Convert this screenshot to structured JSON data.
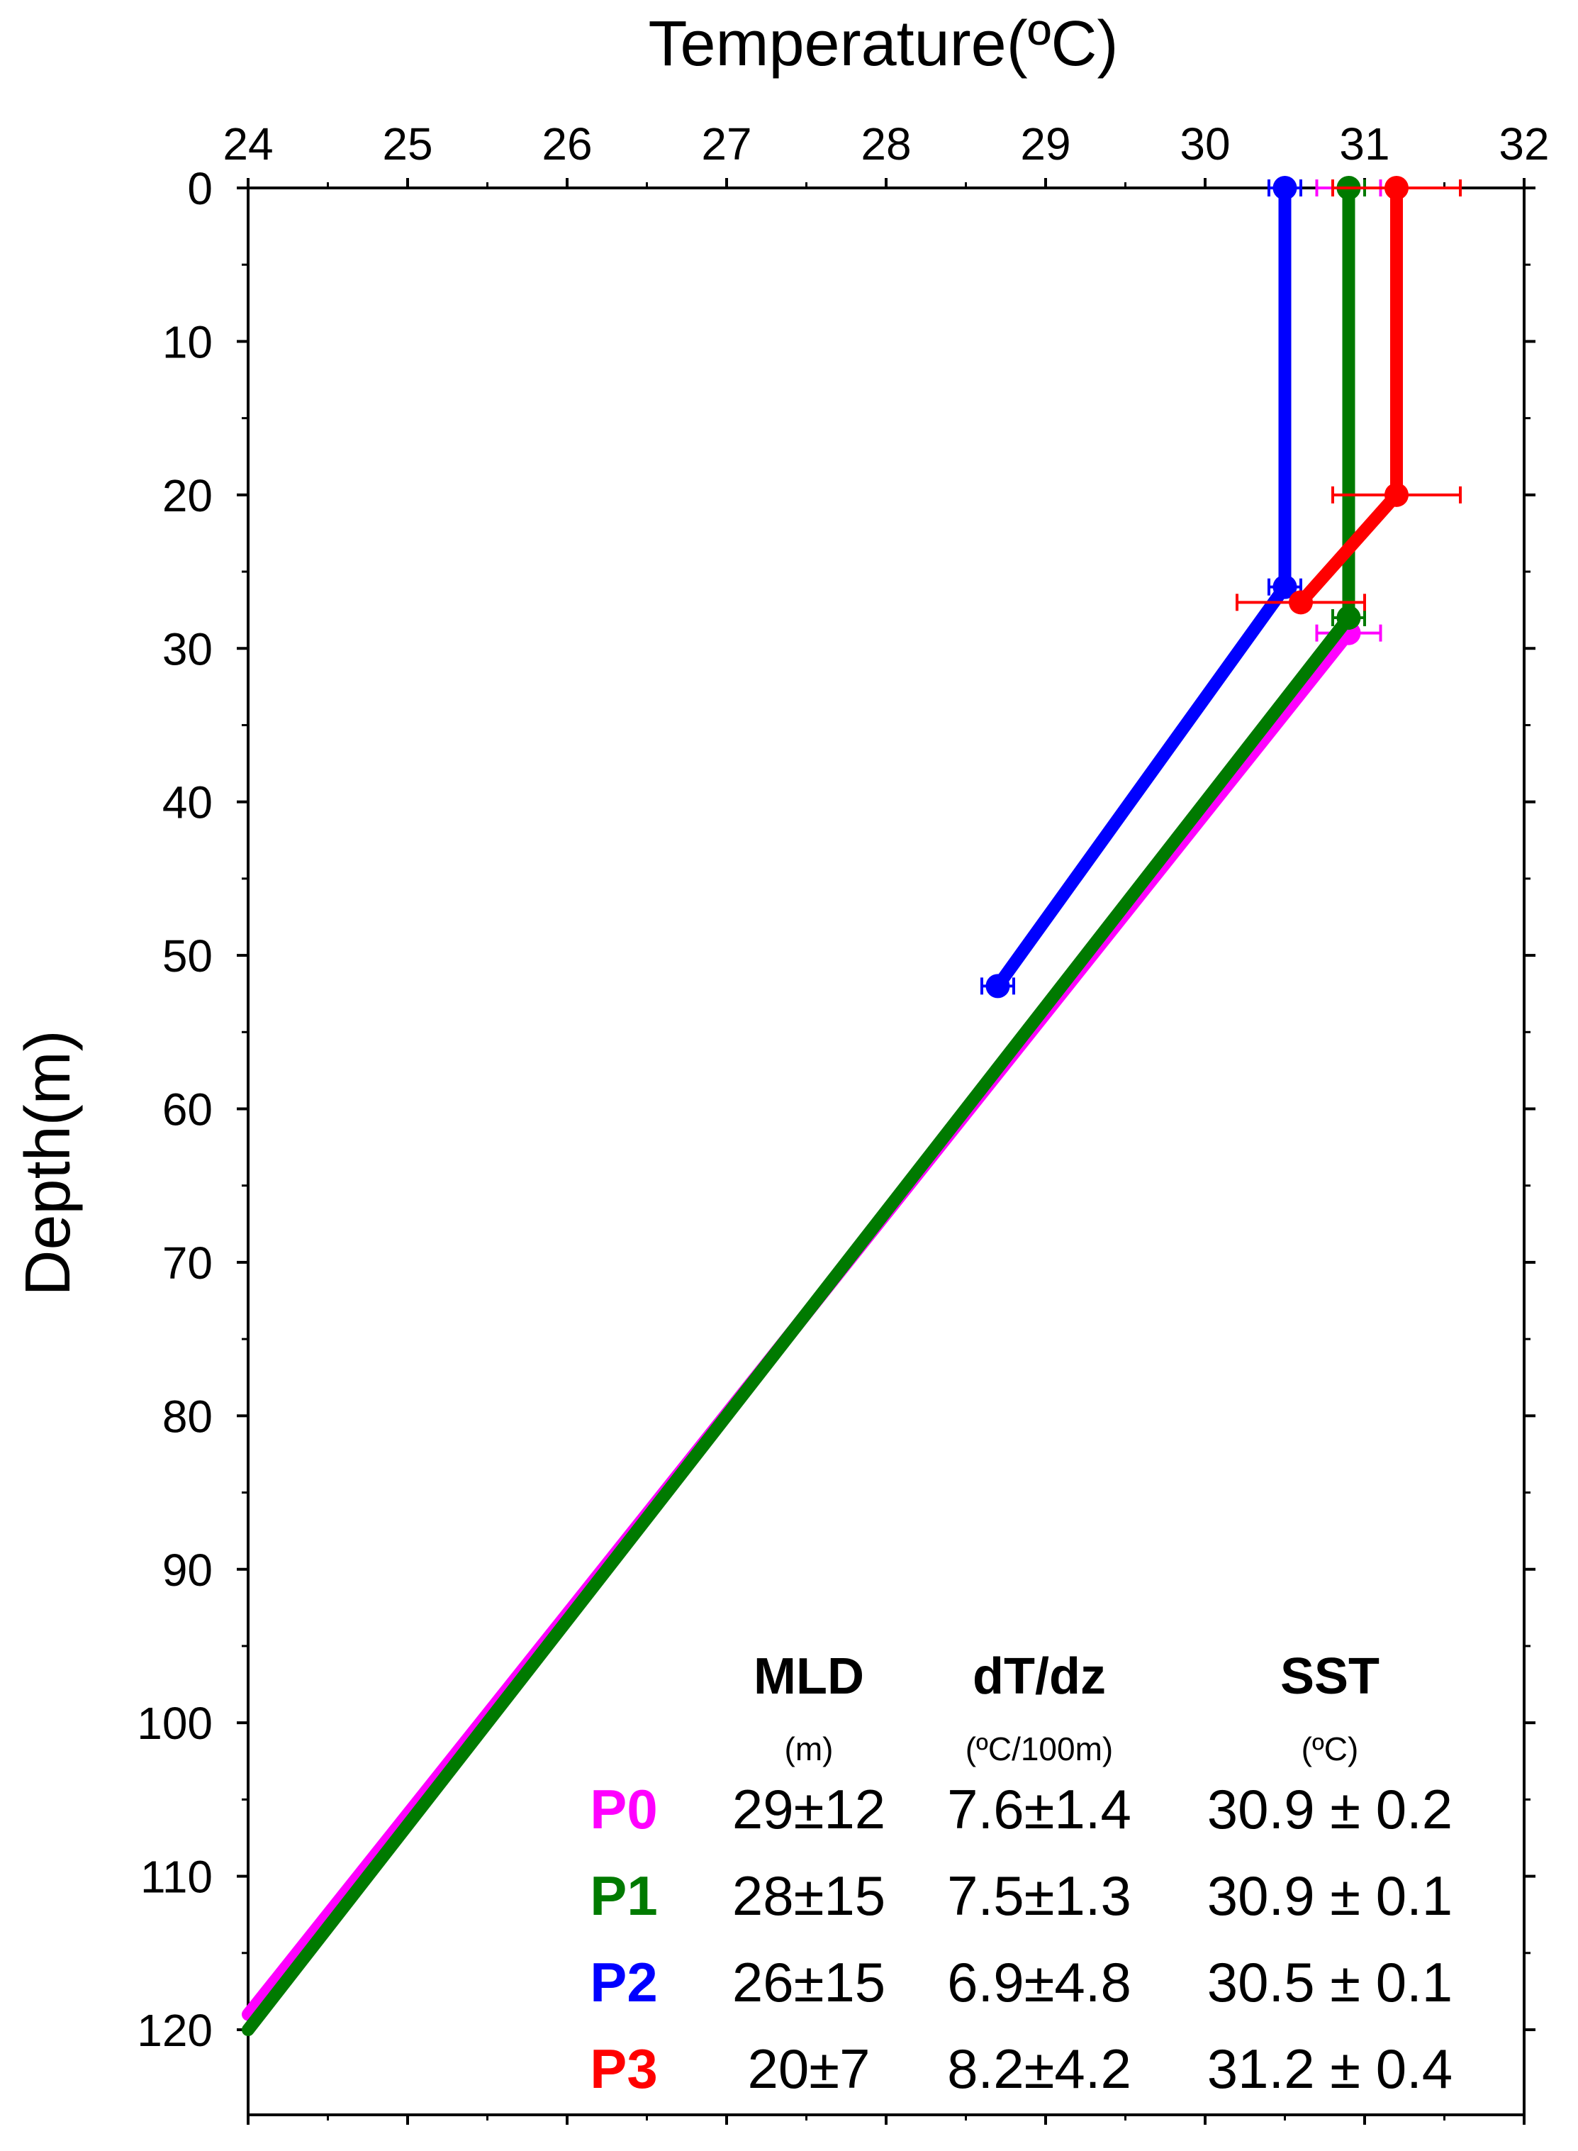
{
  "chart_data": {
    "type": "line",
    "title": "",
    "xlabel": "Temperature(ºC)",
    "ylabel": "Depth(m)",
    "xlim": [
      24,
      32
    ],
    "ylim": [
      0,
      125
    ],
    "y_inverted": true,
    "x_axis_position": "top",
    "x_ticks": [
      24,
      25,
      26,
      27,
      28,
      29,
      30,
      31,
      32
    ],
    "x_tick_labels": [
      "24",
      "25",
      "26",
      "27",
      "28",
      "29",
      "30",
      "31",
      "32"
    ],
    "y_ticks": [
      0,
      10,
      20,
      30,
      40,
      50,
      60,
      70,
      80,
      90,
      100,
      110,
      120
    ],
    "y_tick_labels": [
      "0",
      "10",
      "20",
      "30",
      "40",
      "50",
      "60",
      "70",
      "80",
      "90",
      "100",
      "110",
      "120"
    ],
    "grid": false,
    "series": [
      {
        "name": "P0",
        "color": "#ff00ff",
        "points": [
          {
            "temp": 30.9,
            "depth": 0,
            "err": 0.2,
            "marker": false
          },
          {
            "temp": 30.9,
            "depth": 29,
            "err": 0.2,
            "marker": true
          },
          {
            "temp": 24.0,
            "depth": 119,
            "err": 0,
            "marker": false
          }
        ]
      },
      {
        "name": "P1",
        "color": "#007a00",
        "points": [
          {
            "temp": 30.9,
            "depth": 0,
            "err": 0.1,
            "marker": true
          },
          {
            "temp": 30.9,
            "depth": 28,
            "err": 0.1,
            "marker": true
          },
          {
            "temp": 24.0,
            "depth": 120,
            "err": 0,
            "marker": false
          }
        ]
      },
      {
        "name": "P2",
        "color": "#0000ff",
        "points": [
          {
            "temp": 30.5,
            "depth": 0,
            "err": 0.1,
            "marker": true
          },
          {
            "temp": 30.5,
            "depth": 26,
            "err": 0.1,
            "marker": true
          },
          {
            "temp": 28.7,
            "depth": 52,
            "err": 0.1,
            "marker": true
          }
        ]
      },
      {
        "name": "P3",
        "color": "#ff0000",
        "points": [
          {
            "temp": 31.2,
            "depth": 0,
            "err": 0.4,
            "marker": true
          },
          {
            "temp": 31.2,
            "depth": 20,
            "err": 0.4,
            "marker": true
          },
          {
            "temp": 30.6,
            "depth": 27,
            "err": 0.4,
            "marker": true
          }
        ]
      }
    ],
    "table": {
      "columns": [
        {
          "header": "MLD",
          "unit": "(m)"
        },
        {
          "header": "dT/dz",
          "unit": "(ºC/100m)"
        },
        {
          "header": "SST",
          "unit": "(ºC)"
        }
      ],
      "rows": [
        {
          "label": "P0",
          "color": "#ff00ff",
          "cells": [
            "29±12",
            "7.6±1.4",
            "30.9 ± 0.2"
          ]
        },
        {
          "label": "P1",
          "color": "#007a00",
          "cells": [
            "28±15",
            "7.5±1.3",
            "30.9 ± 0.1"
          ]
        },
        {
          "label": "P2",
          "color": "#0000ff",
          "cells": [
            "26±15",
            "6.9±4.8",
            "30.5 ± 0.1"
          ]
        },
        {
          "label": "P3",
          "color": "#ff0000",
          "cells": [
            "20±7",
            "8.2±4.2",
            "31.2 ± 0.4"
          ]
        }
      ]
    }
  }
}
